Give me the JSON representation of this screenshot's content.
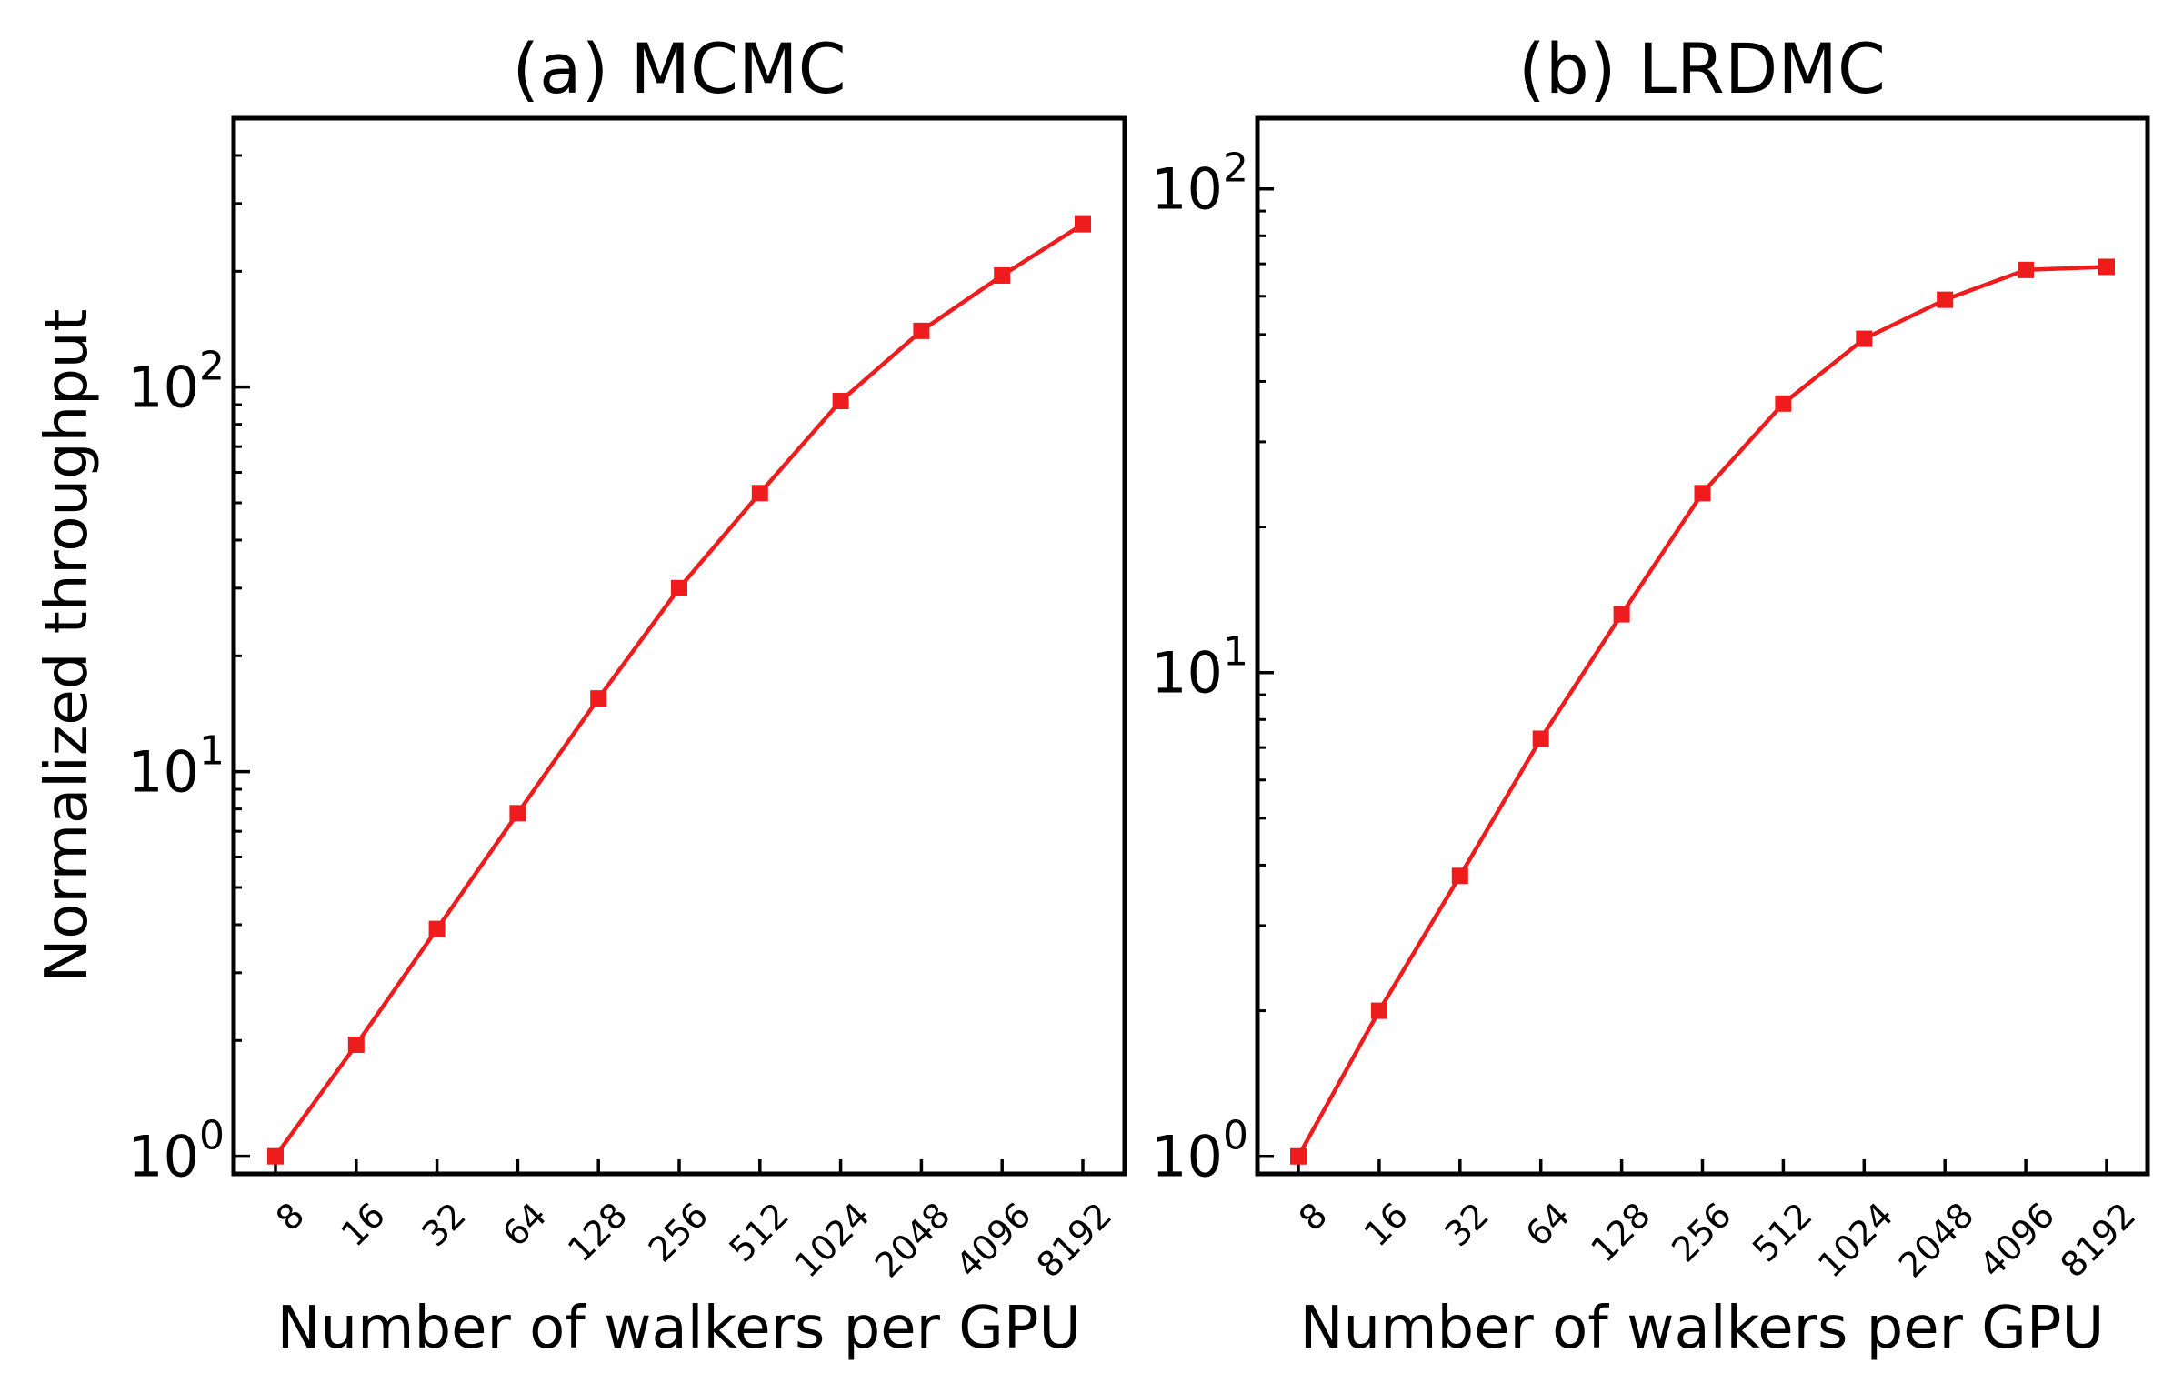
{
  "chart_data": [
    {
      "type": "line",
      "scale": "log-y",
      "title": "(a) MCMC",
      "xlabel": "Number of walkers per GPU",
      "ylabel": "Normalized throughput",
      "categories": [
        "8",
        "16",
        "32",
        "64",
        "128",
        "256",
        "512",
        "1024",
        "2048",
        "4096",
        "8192"
      ],
      "series": [
        {
          "name": "MCMC",
          "color": "#ee1c1c",
          "marker": "square",
          "values": [
            1.0,
            1.95,
            3.9,
            7.8,
            15.5,
            30,
            53,
            92,
            140,
            195,
            265
          ]
        }
      ],
      "ylim": [
        0.9,
        500
      ],
      "yticks": [
        {
          "value": 1,
          "base": "10",
          "exp": "0"
        },
        {
          "value": 10,
          "base": "10",
          "exp": "1"
        },
        {
          "value": 100,
          "base": "10",
          "exp": "2"
        }
      ]
    },
    {
      "type": "line",
      "scale": "log-y",
      "title": "(b) LRDMC",
      "xlabel": "Number of walkers per GPU",
      "ylabel": "",
      "categories": [
        "8",
        "16",
        "32",
        "64",
        "128",
        "256",
        "512",
        "1024",
        "2048",
        "4096",
        "8192"
      ],
      "series": [
        {
          "name": "LRDMC",
          "color": "#ee1c1c",
          "marker": "square",
          "values": [
            1.0,
            2.0,
            3.8,
            7.3,
            13.2,
            23.5,
            36,
            49,
            59,
            68,
            69
          ]
        }
      ],
      "ylim": [
        0.92,
        140
      ],
      "yticks": [
        {
          "value": 1,
          "base": "10",
          "exp": "0"
        },
        {
          "value": 10,
          "base": "10",
          "exp": "1"
        },
        {
          "value": 100,
          "base": "10",
          "exp": "2"
        }
      ]
    }
  ]
}
